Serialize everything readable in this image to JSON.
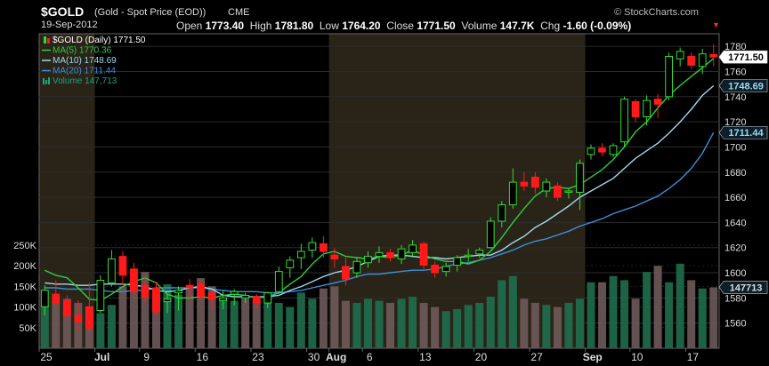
{
  "header": {
    "symbol": "$GOLD",
    "description": "(Gold - Spot Price (EOD))",
    "exchange": "CME",
    "watermark": "© StockCharts.com",
    "date": "19-Sep-2012",
    "open_label": "Open",
    "open_value": "1773.40",
    "high_label": "High",
    "high_value": "1781.80",
    "low_label": "Low",
    "low_value": "1764.20",
    "close_label": "Close",
    "close_value": "1771.50",
    "volume_label": "Volume",
    "volume_value": "147.7K",
    "chg_label": "Chg",
    "chg_value": "-1.60 (-0.09%)"
  },
  "legend": [
    {
      "text": "$GOLD (Daily) 1771.50",
      "color": "#ffffff",
      "icon": "candle-icon"
    },
    {
      "text": "MA(5) 1770.36",
      "color": "#2ecc40",
      "icon": "line-icon"
    },
    {
      "text": "MA(10) 1748.69",
      "color": "#9fd8f0",
      "icon": "line-icon"
    },
    {
      "text": "MA(20) 1711.44",
      "color": "#3a8fd9",
      "icon": "line-icon"
    },
    {
      "text": "Volume 147,713",
      "color": "#1fa37a",
      "icon": "volume-bars-icon"
    }
  ],
  "badges": {
    "close": "1771.50",
    "ma10": "1748.69",
    "ma20": "1711.44",
    "volume": "147713"
  },
  "colors": {
    "up": "#2fe02f",
    "down": "#ff1a1a",
    "ma5": "#2ecc40",
    "ma10": "#9fd8f0",
    "ma20": "#3a8fd9",
    "vol_up": "#1f6e4e",
    "vol_down": "#6e5a5a",
    "band": "#2a2418",
    "background": "#000000"
  },
  "chart_data": {
    "type": "candlestick",
    "price_axis": {
      "min": 1540,
      "max": 1790,
      "ticks": [
        1560,
        1580,
        1600,
        1620,
        1640,
        1660,
        1680,
        1700,
        1720,
        1740,
        1760,
        1780
      ]
    },
    "volume_axis": {
      "ticks": [
        "50K",
        "100K",
        "150K",
        "200K",
        "250K"
      ],
      "tick_values": [
        50,
        100,
        150,
        200,
        250
      ],
      "unit": "K"
    },
    "x_tick_labels": [
      {
        "label": "25",
        "bar": 0
      },
      {
        "label": "Jul",
        "bar": 5,
        "bold": true
      },
      {
        "label": "9",
        "bar": 9
      },
      {
        "label": "16",
        "bar": 14
      },
      {
        "label": "23",
        "bar": 19
      },
      {
        "label": "30",
        "bar": 24
      },
      {
        "label": "Aug",
        "bar": 26,
        "bold": true
      },
      {
        "label": "6",
        "bar": 29
      },
      {
        "label": "13",
        "bar": 34
      },
      {
        "label": "20",
        "bar": 39
      },
      {
        "label": "27",
        "bar": 44
      },
      {
        "label": "Sep",
        "bar": 49,
        "bold": true
      },
      {
        "label": "10",
        "bar": 53
      },
      {
        "label": "17",
        "bar": 58
      }
    ],
    "month_bands": [
      {
        "from": 0,
        "to": 5,
        "shaded": true
      },
      {
        "from": 5,
        "to": 26,
        "shaded": false
      },
      {
        "from": 26,
        "to": 49,
        "shaded": true
      },
      {
        "from": 49,
        "to": 61,
        "shaded": false
      }
    ],
    "candles": [
      {
        "o": 1573,
        "h": 1590,
        "l": 1566,
        "c": 1586
      },
      {
        "o": 1583,
        "h": 1594,
        "l": 1571,
        "c": 1576
      },
      {
        "o": 1578,
        "h": 1582,
        "l": 1562,
        "c": 1566
      },
      {
        "o": 1566,
        "h": 1578,
        "l": 1553,
        "c": 1561
      },
      {
        "o": 1573,
        "h": 1592,
        "l": 1552,
        "c": 1556
      },
      {
        "o": 1570,
        "h": 1598,
        "l": 1568,
        "c": 1594
      },
      {
        "o": 1592,
        "h": 1618,
        "l": 1589,
        "c": 1611
      },
      {
        "o": 1613,
        "h": 1617,
        "l": 1590,
        "c": 1598
      },
      {
        "o": 1603,
        "h": 1608,
        "l": 1580,
        "c": 1585
      },
      {
        "o": 1590,
        "h": 1597,
        "l": 1576,
        "c": 1581
      },
      {
        "o": 1588,
        "h": 1593,
        "l": 1566,
        "c": 1569
      },
      {
        "o": 1577,
        "h": 1583,
        "l": 1568,
        "c": 1579
      },
      {
        "o": 1584,
        "h": 1589,
        "l": 1570,
        "c": 1586
      },
      {
        "o": 1590,
        "h": 1595,
        "l": 1578,
        "c": 1588
      },
      {
        "o": 1591,
        "h": 1594,
        "l": 1578,
        "c": 1581
      },
      {
        "o": 1584,
        "h": 1586,
        "l": 1570,
        "c": 1579
      },
      {
        "o": 1578,
        "h": 1586,
        "l": 1571,
        "c": 1580
      },
      {
        "o": 1583,
        "h": 1587,
        "l": 1574,
        "c": 1585
      },
      {
        "o": 1580,
        "h": 1584,
        "l": 1576,
        "c": 1582
      },
      {
        "o": 1581,
        "h": 1583,
        "l": 1572,
        "c": 1576
      },
      {
        "o": 1576,
        "h": 1585,
        "l": 1572,
        "c": 1584
      },
      {
        "o": 1585,
        "h": 1605,
        "l": 1583,
        "c": 1601
      },
      {
        "o": 1604,
        "h": 1613,
        "l": 1596,
        "c": 1610
      },
      {
        "o": 1612,
        "h": 1623,
        "l": 1603,
        "c": 1617
      },
      {
        "o": 1618,
        "h": 1628,
        "l": 1612,
        "c": 1624
      },
      {
        "o": 1623,
        "h": 1629,
        "l": 1612,
        "c": 1617
      },
      {
        "o": 1614,
        "h": 1620,
        "l": 1604,
        "c": 1611
      },
      {
        "o": 1605,
        "h": 1612,
        "l": 1590,
        "c": 1595
      },
      {
        "o": 1600,
        "h": 1612,
        "l": 1596,
        "c": 1609
      },
      {
        "o": 1608,
        "h": 1617,
        "l": 1604,
        "c": 1613
      },
      {
        "o": 1613,
        "h": 1621,
        "l": 1608,
        "c": 1616
      },
      {
        "o": 1616,
        "h": 1619,
        "l": 1609,
        "c": 1612
      },
      {
        "o": 1611,
        "h": 1622,
        "l": 1607,
        "c": 1619
      },
      {
        "o": 1616,
        "h": 1626,
        "l": 1612,
        "c": 1622
      },
      {
        "o": 1623,
        "h": 1625,
        "l": 1603,
        "c": 1606
      },
      {
        "o": 1606,
        "h": 1609,
        "l": 1596,
        "c": 1600
      },
      {
        "o": 1601,
        "h": 1608,
        "l": 1597,
        "c": 1605
      },
      {
        "o": 1606,
        "h": 1614,
        "l": 1601,
        "c": 1612
      },
      {
        "o": 1613,
        "h": 1619,
        "l": 1609,
        "c": 1614
      },
      {
        "o": 1615,
        "h": 1620,
        "l": 1612,
        "c": 1618
      },
      {
        "o": 1620,
        "h": 1644,
        "l": 1619,
        "c": 1641
      },
      {
        "o": 1641,
        "h": 1657,
        "l": 1636,
        "c": 1654
      },
      {
        "o": 1654,
        "h": 1683,
        "l": 1651,
        "c": 1672
      },
      {
        "o": 1672,
        "h": 1680,
        "l": 1665,
        "c": 1669
      },
      {
        "o": 1676,
        "h": 1680,
        "l": 1663,
        "c": 1668
      },
      {
        "o": 1665,
        "h": 1675,
        "l": 1660,
        "c": 1672
      },
      {
        "o": 1669,
        "h": 1672,
        "l": 1657,
        "c": 1660
      },
      {
        "o": 1664,
        "h": 1667,
        "l": 1659,
        "c": 1665
      },
      {
        "o": 1664,
        "h": 1690,
        "l": 1650,
        "c": 1687
      },
      {
        "o": 1694,
        "h": 1702,
        "l": 1690,
        "c": 1699
      },
      {
        "o": 1699,
        "h": 1703,
        "l": 1693,
        "c": 1696
      },
      {
        "o": 1694,
        "h": 1703,
        "l": 1692,
        "c": 1701
      },
      {
        "o": 1704,
        "h": 1740,
        "l": 1700,
        "c": 1738
      },
      {
        "o": 1736,
        "h": 1738,
        "l": 1720,
        "c": 1724
      },
      {
        "o": 1724,
        "h": 1741,
        "l": 1717,
        "c": 1737
      },
      {
        "o": 1738,
        "h": 1742,
        "l": 1723,
        "c": 1734
      },
      {
        "o": 1740,
        "h": 1775,
        "l": 1737,
        "c": 1772
      },
      {
        "o": 1770,
        "h": 1779,
        "l": 1764,
        "c": 1776
      },
      {
        "o": 1772,
        "h": 1775,
        "l": 1762,
        "c": 1765
      },
      {
        "o": 1764,
        "h": 1778,
        "l": 1758,
        "c": 1774
      },
      {
        "o": 1773.4,
        "h": 1781.8,
        "l": 1764.2,
        "c": 1771.5
      }
    ],
    "ma5": [
      1602,
      1598,
      1596,
      1588,
      1579,
      1578,
      1583,
      1589,
      1593,
      1596,
      1592,
      1583,
      1580,
      1580,
      1581,
      1580,
      1582,
      1583,
      1582,
      1580,
      1581,
      1584,
      1591,
      1597,
      1607,
      1615,
      1617,
      1613,
      1612,
      1611,
      1613,
      1612,
      1614,
      1618,
      1614,
      1611,
      1609,
      1609,
      1607,
      1610,
      1617,
      1628,
      1640,
      1651,
      1661,
      1667,
      1668,
      1667,
      1670,
      1676,
      1682,
      1690,
      1700,
      1712,
      1720,
      1731,
      1741,
      1749,
      1756,
      1763,
      1770.36
    ],
    "ma10": [
      1592,
      1591,
      1591,
      1590,
      1590,
      1591,
      1591,
      1591,
      1590,
      1589,
      1586,
      1585,
      1586,
      1588,
      1589,
      1587,
      1582,
      1581,
      1581,
      1581,
      1581,
      1582,
      1586,
      1589,
      1593,
      1597,
      1600,
      1602,
      1605,
      1609,
      1613,
      1614,
      1614,
      1613,
      1612,
      1612,
      1611,
      1612,
      1613,
      1614,
      1614,
      1618,
      1624,
      1629,
      1636,
      1641,
      1647,
      1653,
      1660,
      1665,
      1670,
      1675,
      1683,
      1691,
      1697,
      1703,
      1711,
      1720,
      1730,
      1741,
      1748.69
    ],
    "ma20": [
      1588,
      1588,
      1587,
      1587,
      1587,
      1586,
      1585,
      1585,
      1586,
      1586,
      1588,
      1588,
      1588,
      1588,
      1588,
      1587,
      1586,
      1585,
      1585,
      1585,
      1584,
      1584,
      1585,
      1586,
      1588,
      1590,
      1592,
      1594,
      1597,
      1599,
      1599,
      1600,
      1601,
      1602,
      1602,
      1603,
      1605,
      1607,
      1608,
      1610,
      1612,
      1615,
      1618,
      1622,
      1625,
      1627,
      1630,
      1633,
      1637,
      1640,
      1643,
      1647,
      1650,
      1653,
      1657,
      1661,
      1667,
      1674,
      1683,
      1695,
      1711.44
    ],
    "volume_k": [
      105,
      115,
      120,
      110,
      100,
      85,
      105,
      150,
      160,
      185,
      145,
      155,
      130,
      145,
      170,
      150,
      120,
      115,
      120,
      115,
      125,
      110,
      100,
      135,
      120,
      145,
      150,
      115,
      110,
      120,
      115,
      110,
      120,
      125,
      110,
      100,
      90,
      95,
      105,
      110,
      125,
      165,
      175,
      120,
      110,
      105,
      100,
      110,
      120,
      160,
      160,
      175,
      165,
      120,
      185,
      200,
      160,
      205,
      165,
      145,
      147.713
    ],
    "volume_up": [
      true,
      false,
      false,
      false,
      false,
      true,
      true,
      false,
      false,
      false,
      false,
      true,
      true,
      false,
      false,
      false,
      true,
      true,
      false,
      false,
      true,
      true,
      true,
      true,
      true,
      false,
      false,
      false,
      true,
      true,
      true,
      false,
      true,
      true,
      false,
      false,
      true,
      true,
      true,
      true,
      true,
      true,
      true,
      false,
      false,
      true,
      false,
      true,
      true,
      true,
      false,
      true,
      true,
      false,
      true,
      false,
      true,
      true,
      false,
      true,
      false
    ]
  }
}
